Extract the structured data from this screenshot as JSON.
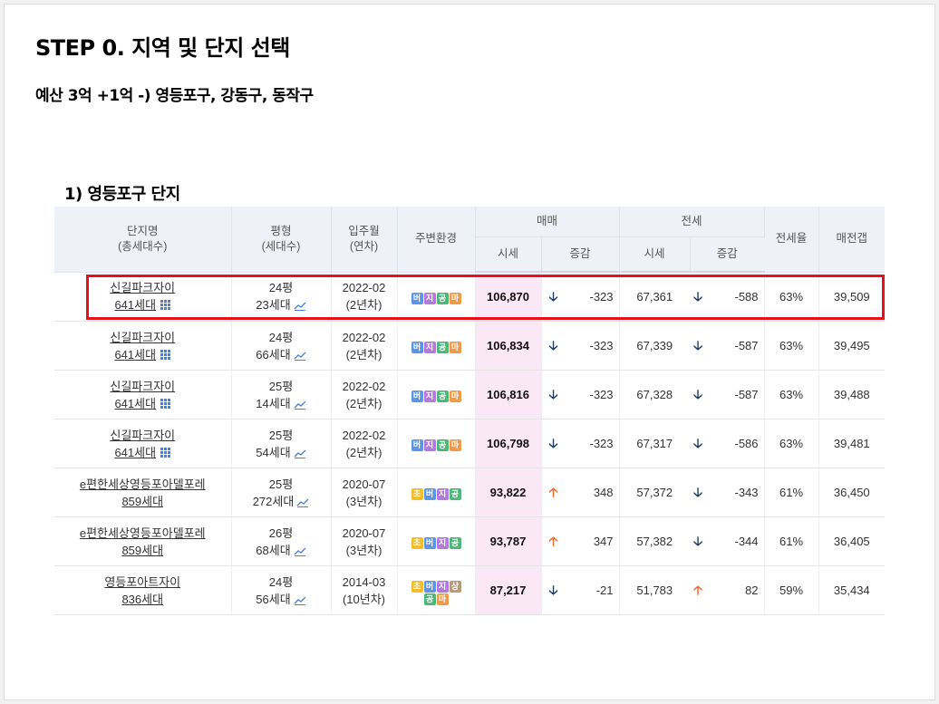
{
  "title": "STEP 0. 지역 및 단지 선택",
  "subtitle": "예산 3억 +1억 -) 영등포구, 강동구, 동작구",
  "section": "1) 영등포구 단지",
  "headers": {
    "name": "단지명",
    "name_sub": "(총세대수)",
    "size": "평형",
    "size_sub": "(세대수)",
    "move_in": "입주월",
    "move_in_sub": "(연차)",
    "env": "주변환경",
    "sale": "매매",
    "jeonse": "전세",
    "price": "시세",
    "change": "증감",
    "jeonse_price": "시세",
    "jeonse_change": "증감",
    "ratio": "전세율",
    "gap": "매전갭"
  },
  "colors": {
    "up": "#f2672b",
    "down": "#1d3b63",
    "highlight": "#e8101a",
    "sale_bg": "#fbe8f7"
  },
  "rows": [
    {
      "name": "신길파크자이",
      "units": "641세대",
      "units_icon": "grid-icon",
      "size": "24평",
      "households": "23세대",
      "move_in": "2022-02",
      "age": "(2년차)",
      "badges": [
        "버",
        "지",
        "공",
        "마"
      ],
      "price": "106,870",
      "price_dir": "down",
      "price_arrow": "🡣",
      "price_change": "-323",
      "jeonse": "67,361",
      "jeonse_dir": "down",
      "jeonse_arrow": "🡣",
      "jeonse_change": "-588",
      "ratio": "63%",
      "gap": "39,509",
      "highlighted": true
    },
    {
      "name": "신길파크자이",
      "units": "641세대",
      "units_icon": "grid-icon",
      "size": "24평",
      "households": "66세대",
      "move_in": "2022-02",
      "age": "(2년차)",
      "badges": [
        "버",
        "지",
        "공",
        "마"
      ],
      "price": "106,834",
      "price_dir": "down",
      "price_arrow": "🡣",
      "price_change": "-323",
      "jeonse": "67,339",
      "jeonse_dir": "down",
      "jeonse_arrow": "🡣",
      "jeonse_change": "-587",
      "ratio": "63%",
      "gap": "39,495"
    },
    {
      "name": "신길파크자이",
      "units": "641세대",
      "units_icon": "grid-icon",
      "size": "25평",
      "households": "14세대",
      "move_in": "2022-02",
      "age": "(2년차)",
      "badges": [
        "버",
        "지",
        "공",
        "마"
      ],
      "price": "106,816",
      "price_dir": "down",
      "price_arrow": "🡣",
      "price_change": "-323",
      "jeonse": "67,328",
      "jeonse_dir": "down",
      "jeonse_arrow": "🡣",
      "jeonse_change": "-587",
      "ratio": "63%",
      "gap": "39,488"
    },
    {
      "name": "신길파크자이",
      "units": "641세대",
      "units_icon": "grid-icon",
      "size": "25평",
      "households": "54세대",
      "move_in": "2022-02",
      "age": "(2년차)",
      "badges": [
        "버",
        "지",
        "공",
        "마"
      ],
      "price": "106,798",
      "price_dir": "down",
      "price_arrow": "🡣",
      "price_change": "-323",
      "jeonse": "67,317",
      "jeonse_dir": "down",
      "jeonse_arrow": "🡣",
      "jeonse_change": "-586",
      "ratio": "63%",
      "gap": "39,481"
    },
    {
      "name": "e편한세상영등포아델포레",
      "units": "859세대",
      "size": "25평",
      "households": "272세대",
      "move_in": "2020-07",
      "age": "(3년차)",
      "badges": [
        "초",
        "버",
        "지",
        "공"
      ],
      "price": "93,822",
      "price_dir": "up",
      "price_arrow": "🡡",
      "price_change": "348",
      "jeonse": "57,372",
      "jeonse_dir": "down",
      "jeonse_arrow": "🡣",
      "jeonse_change": "-343",
      "ratio": "61%",
      "gap": "36,450"
    },
    {
      "name": "e편한세상영등포아델포레",
      "units": "859세대",
      "size": "26평",
      "households": "68세대",
      "move_in": "2020-07",
      "age": "(3년차)",
      "badges": [
        "초",
        "버",
        "지",
        "공"
      ],
      "price": "93,787",
      "price_dir": "up",
      "price_arrow": "🡡",
      "price_change": "347",
      "jeonse": "57,382",
      "jeonse_dir": "down",
      "jeonse_arrow": "🡣",
      "jeonse_change": "-344",
      "ratio": "61%",
      "gap": "36,405"
    },
    {
      "name": "영등포아트자이",
      "units": "836세대",
      "size": "24평",
      "households": "56세대",
      "move_in": "2014-03",
      "age": "(10년차)",
      "badges": [
        "초",
        "버",
        "지",
        "상",
        "공",
        "마"
      ],
      "price": "87,217",
      "price_dir": "down",
      "price_arrow": "🡣",
      "price_change": "-21",
      "jeonse": "51,783",
      "jeonse_dir": "up",
      "jeonse_arrow": "🡡",
      "jeonse_change": "82",
      "ratio": "59%",
      "gap": "35,434"
    }
  ]
}
